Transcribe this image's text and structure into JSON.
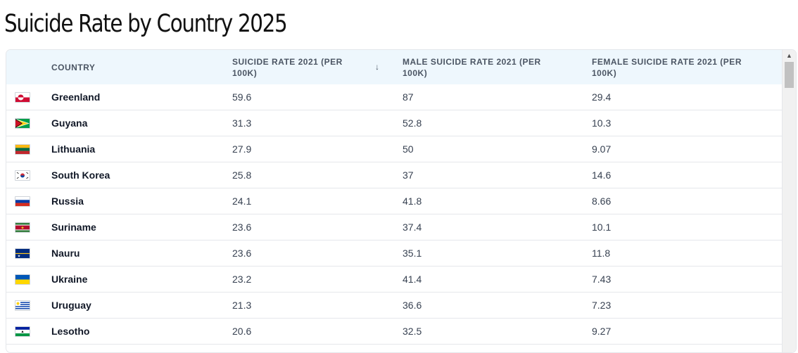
{
  "page": {
    "title": "Suicide Rate by Country 2025"
  },
  "table": {
    "columns": [
      {
        "label": "COUNTRY"
      },
      {
        "label": "SUICIDE RATE 2021 (PER 100K)",
        "sorted": "desc"
      },
      {
        "label": "MALE SUICIDE RATE 2021 (PER 100K)"
      },
      {
        "label": "FEMALE SUICIDE RATE 2021 (PER 100K)"
      }
    ],
    "rows": [
      {
        "flag": "greenland-flag-icon",
        "country": "Greenland",
        "total": "59.6",
        "male": "87",
        "female": "29.4"
      },
      {
        "flag": "guyana-flag-icon",
        "country": "Guyana",
        "total": "31.3",
        "male": "52.8",
        "female": "10.3"
      },
      {
        "flag": "lithuania-flag-icon",
        "country": "Lithuania",
        "total": "27.9",
        "male": "50",
        "female": "9.07"
      },
      {
        "flag": "south-korea-flag-icon",
        "country": "South Korea",
        "total": "25.8",
        "male": "37",
        "female": "14.6"
      },
      {
        "flag": "russia-flag-icon",
        "country": "Russia",
        "total": "24.1",
        "male": "41.8",
        "female": "8.66"
      },
      {
        "flag": "suriname-flag-icon",
        "country": "Suriname",
        "total": "23.6",
        "male": "37.4",
        "female": "10.1"
      },
      {
        "flag": "nauru-flag-icon",
        "country": "Nauru",
        "total": "23.6",
        "male": "35.1",
        "female": "11.8"
      },
      {
        "flag": "ukraine-flag-icon",
        "country": "Ukraine",
        "total": "23.2",
        "male": "41.4",
        "female": "7.43"
      },
      {
        "flag": "uruguay-flag-icon",
        "country": "Uruguay",
        "total": "21.3",
        "male": "36.6",
        "female": "7.23"
      },
      {
        "flag": "lesotho-flag-icon",
        "country": "Lesotho",
        "total": "20.6",
        "male": "32.5",
        "female": "9.27"
      }
    ]
  },
  "icons": {
    "sort": "arrow-down-icon",
    "scroll_up": "triangle-up-icon"
  }
}
